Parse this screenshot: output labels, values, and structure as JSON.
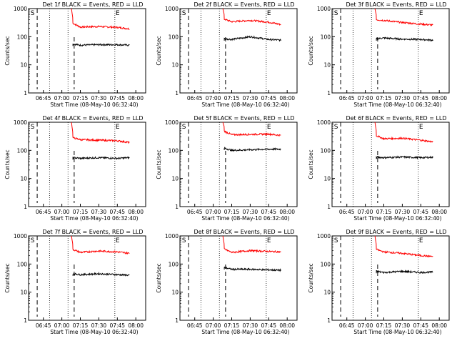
{
  "figure": {
    "xlabel": "Start Time (08-May-10 06:32:40)",
    "ylabel": "Counts/sec",
    "x_ticks": [
      "06:45",
      "07:00",
      "07:15",
      "07:30",
      "07:45",
      "08:00"
    ],
    "y_ticks": [
      "1",
      "10",
      "100",
      "1000"
    ],
    "colors": {
      "events": "#000000",
      "lld": "#ff0000",
      "axes": "#000000"
    }
  },
  "chart_data": [
    {
      "type": "line",
      "title": "Det 1f BLACK = Events, RED = LLD",
      "xlim": [
        "06:33",
        "08:08"
      ],
      "ylim": [
        1,
        1000
      ],
      "yscale": "log",
      "grid": "dotted verticals",
      "flags": [
        "S",
        "E"
      ],
      "series": [
        {
          "name": "LLD",
          "color": "#ff0000",
          "x": [
            "07:09",
            "07:15",
            "07:30",
            "07:45",
            "07:55"
          ],
          "y": [
            300,
            220,
            230,
            215,
            190
          ]
        },
        {
          "name": "Events",
          "color": "#000000",
          "x": [
            "07:09",
            "07:15",
            "07:30",
            "07:45",
            "07:55"
          ],
          "y": [
            55,
            50,
            52,
            52,
            50
          ]
        }
      ]
    },
    {
      "type": "line",
      "title": "Det 2f BLACK = Events, RED = LLD",
      "xlim": [
        "06:33",
        "08:08"
      ],
      "ylim": [
        1,
        1000
      ],
      "yscale": "log",
      "grid": "dotted verticals",
      "flags": [
        "S",
        "E"
      ],
      "series": [
        {
          "name": "LLD",
          "color": "#ff0000",
          "x": [
            "07:09",
            "07:15",
            "07:30",
            "07:45",
            "07:55"
          ],
          "y": [
            420,
            340,
            380,
            330,
            270
          ]
        },
        {
          "name": "Events",
          "color": "#000000",
          "x": [
            "07:09",
            "07:15",
            "07:30",
            "07:45",
            "07:55"
          ],
          "y": [
            85,
            80,
            100,
            80,
            75
          ]
        }
      ]
    },
    {
      "type": "line",
      "title": "Det 3f BLACK = Events, RED = LLD",
      "xlim": [
        "06:33",
        "08:08"
      ],
      "ylim": [
        1,
        1000
      ],
      "yscale": "log",
      "grid": "dotted verticals",
      "flags": [
        "S",
        "E"
      ],
      "series": [
        {
          "name": "LLD",
          "color": "#ff0000",
          "x": [
            "07:09",
            "07:15",
            "07:30",
            "07:45",
            "07:55"
          ],
          "y": [
            400,
            380,
            320,
            280,
            260
          ]
        },
        {
          "name": "Events",
          "color": "#000000",
          "x": [
            "07:09",
            "07:15",
            "07:30",
            "07:45",
            "07:55"
          ],
          "y": [
            85,
            90,
            82,
            80,
            75
          ]
        }
      ]
    },
    {
      "type": "line",
      "title": "Det 4f BLACK = Events, RED = LLD",
      "xlim": [
        "06:33",
        "08:08"
      ],
      "ylim": [
        1,
        1000
      ],
      "yscale": "log",
      "grid": "dotted verticals",
      "flags": [
        "S",
        "E"
      ],
      "series": [
        {
          "name": "LLD",
          "color": "#ff0000",
          "x": [
            "07:09",
            "07:15",
            "07:30",
            "07:45",
            "07:55"
          ],
          "y": [
            280,
            240,
            230,
            220,
            190
          ]
        },
        {
          "name": "Events",
          "color": "#000000",
          "x": [
            "07:09",
            "07:15",
            "07:30",
            "07:45",
            "07:55"
          ],
          "y": [
            55,
            52,
            55,
            52,
            55
          ]
        }
      ]
    },
    {
      "type": "line",
      "title": "Det 5f BLACK = Events, RED = LLD",
      "xlim": [
        "06:33",
        "08:08"
      ],
      "ylim": [
        1,
        1000
      ],
      "yscale": "log",
      "grid": "dotted verticals",
      "flags": [
        "S",
        "E"
      ],
      "series": [
        {
          "name": "LLD",
          "color": "#ff0000",
          "x": [
            "07:09",
            "07:15",
            "07:30",
            "07:45",
            "07:55"
          ],
          "y": [
            480,
            360,
            370,
            380,
            340
          ]
        },
        {
          "name": "Events",
          "color": "#000000",
          "x": [
            "07:09",
            "07:15",
            "07:30",
            "07:45",
            "07:55"
          ],
          "y": [
            120,
            100,
            105,
            110,
            110
          ]
        }
      ]
    },
    {
      "type": "line",
      "title": "Det 6f BLACK = Events, RED = LLD",
      "xlim": [
        "06:33",
        "08:08"
      ],
      "ylim": [
        1,
        1000
      ],
      "yscale": "log",
      "grid": "dotted verticals",
      "flags": [
        "S",
        "E"
      ],
      "series": [
        {
          "name": "LLD",
          "color": "#ff0000",
          "x": [
            "07:09",
            "07:15",
            "07:30",
            "07:45",
            "07:55"
          ],
          "y": [
            330,
            260,
            270,
            230,
            200
          ]
        },
        {
          "name": "Events",
          "color": "#000000",
          "x": [
            "07:09",
            "07:15",
            "07:30",
            "07:45",
            "07:55"
          ],
          "y": [
            58,
            55,
            58,
            55,
            57
          ]
        }
      ]
    },
    {
      "type": "line",
      "title": "Det 7f BLACK = Events, RED = LLD",
      "xlim": [
        "06:33",
        "08:08"
      ],
      "ylim": [
        1,
        1000
      ],
      "yscale": "log",
      "grid": "dotted verticals",
      "flags": [
        "S",
        "E"
      ],
      "series": [
        {
          "name": "LLD",
          "color": "#ff0000",
          "x": [
            "07:09",
            "07:15",
            "07:30",
            "07:45",
            "07:55"
          ],
          "y": [
            330,
            260,
            290,
            270,
            240
          ]
        },
        {
          "name": "Events",
          "color": "#000000",
          "x": [
            "07:09",
            "07:15",
            "07:30",
            "07:45",
            "07:55"
          ],
          "y": [
            45,
            42,
            45,
            42,
            40
          ]
        }
      ]
    },
    {
      "type": "line",
      "title": "Det 8f BLACK = Events, RED = LLD",
      "xlim": [
        "06:33",
        "08:08"
      ],
      "ylim": [
        1,
        1000
      ],
      "yscale": "log",
      "grid": "dotted verticals",
      "flags": [
        "S",
        "E"
      ],
      "series": [
        {
          "name": "LLD",
          "color": "#ff0000",
          "x": [
            "07:09",
            "07:15",
            "07:30",
            "07:45",
            "07:55"
          ],
          "y": [
            340,
            260,
            300,
            280,
            270
          ]
        },
        {
          "name": "Events",
          "color": "#000000",
          "x": [
            "07:09",
            "07:15",
            "07:30",
            "07:45",
            "07:55"
          ],
          "y": [
            75,
            65,
            65,
            62,
            60
          ]
        }
      ]
    },
    {
      "type": "line",
      "title": "Det 9f BLACK = Events, RED = LLD",
      "xlim": [
        "06:33",
        "08:08"
      ],
      "ylim": [
        1,
        1000
      ],
      "yscale": "log",
      "grid": "dotted verticals",
      "flags": [
        "S",
        "E"
      ],
      "series": [
        {
          "name": "LLD",
          "color": "#ff0000",
          "x": [
            "07:09",
            "07:15",
            "07:30",
            "07:45",
            "07:55"
          ],
          "y": [
            330,
            270,
            240,
            200,
            185
          ]
        },
        {
          "name": "Events",
          "color": "#000000",
          "x": [
            "07:09",
            "07:15",
            "07:30",
            "07:45",
            "07:55"
          ],
          "y": [
            55,
            50,
            55,
            50,
            52
          ]
        }
      ]
    }
  ]
}
